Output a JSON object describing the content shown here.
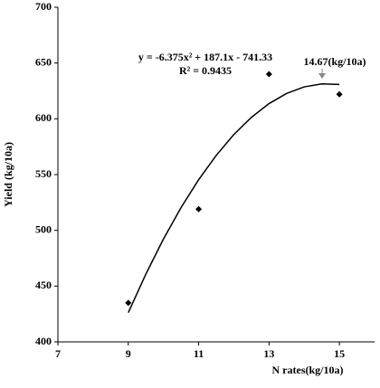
{
  "chart_data": {
    "type": "scatter",
    "x_label": "N rates(kg/10a)",
    "y_label": "Yield (kg/10a)",
    "series": [
      {
        "name": "Yield",
        "color": "#000000",
        "x": [
          9,
          11,
          13,
          15
        ],
        "values": [
          435,
          519,
          640,
          622
        ]
      }
    ],
    "trendline": {
      "color": "#000000",
      "x": [
        9,
        9.5,
        10,
        10.5,
        11,
        11.5,
        12,
        12.5,
        13,
        13.5,
        14,
        14.5,
        15
      ],
      "values": [
        426.2,
        460.8,
        492.2,
        520.4,
        545.4,
        567.2,
        585.9,
        601.3,
        613.6,
        622.7,
        628.6,
        631.3,
        630.8
      ]
    },
    "annotations": [
      "y = -6.375x² + 187.1x - 741.33",
      "R² = 0.9435",
      "14.67(kg/10a)"
    ],
    "xlim": [
      7,
      16
    ],
    "xticks": [
      7,
      9,
      11,
      13,
      15
    ],
    "ylim": [
      400,
      700
    ],
    "yticks": [
      400,
      450,
      500,
      550,
      600,
      650,
      700
    ]
  }
}
